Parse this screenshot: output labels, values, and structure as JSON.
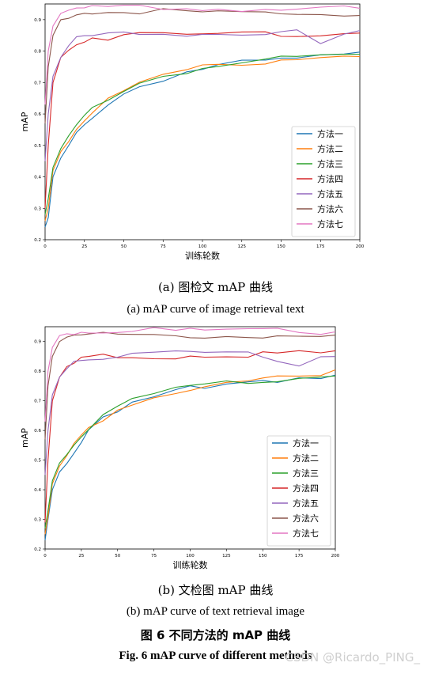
{
  "chart_data": [
    {
      "type": "line",
      "xlabel": "训练轮数",
      "ylabel": "mAP",
      "xlim": [
        0,
        200
      ],
      "ylim": [
        0.2,
        0.95
      ],
      "xticks": [
        0,
        25,
        50,
        75,
        100,
        125,
        150,
        175,
        200
      ],
      "yticks": [
        0.2,
        0.3,
        0.4,
        0.5,
        0.6,
        0.7,
        0.8,
        0.9
      ],
      "legend_position": "lower-right",
      "x": [
        0,
        2,
        5,
        10,
        15,
        20,
        25,
        30,
        40,
        50,
        60,
        75,
        90,
        100,
        110,
        125,
        140,
        150,
        160,
        175,
        190,
        200
      ],
      "series": [
        {
          "name": "方法一",
          "color": "#1f77b4",
          "values": [
            0.24,
            0.27,
            0.4,
            0.46,
            0.5,
            0.54,
            0.57,
            0.6,
            0.64,
            0.67,
            0.695,
            0.72,
            0.74,
            0.75,
            0.758,
            0.766,
            0.772,
            0.776,
            0.78,
            0.785,
            0.79,
            0.795
          ]
        },
        {
          "name": "方法二",
          "color": "#ff7f0e",
          "values": [
            0.26,
            0.3,
            0.42,
            0.48,
            0.52,
            0.56,
            0.59,
            0.615,
            0.65,
            0.68,
            0.7,
            0.725,
            0.742,
            0.752,
            0.76,
            0.768,
            0.774,
            0.778,
            0.782,
            0.787,
            0.792,
            0.8
          ]
        },
        {
          "name": "方法三",
          "color": "#2ca02c",
          "values": [
            0.28,
            0.33,
            0.43,
            0.49,
            0.53,
            0.565,
            0.595,
            0.62,
            0.655,
            0.685,
            0.705,
            0.728,
            0.744,
            0.754,
            0.761,
            0.769,
            0.775,
            0.779,
            0.783,
            0.788,
            0.79,
            0.795
          ]
        },
        {
          "name": "方法四",
          "color": "#d62728",
          "values": [
            0.3,
            0.5,
            0.7,
            0.78,
            0.81,
            0.83,
            0.845,
            0.85,
            0.852,
            0.855,
            0.856,
            0.857,
            0.858,
            0.86,
            0.86,
            0.861,
            0.862,
            0.863,
            0.864,
            0.865,
            0.866,
            0.866
          ]
        },
        {
          "name": "方法五",
          "color": "#9467bd",
          "values": [
            0.45,
            0.6,
            0.72,
            0.78,
            0.82,
            0.84,
            0.85,
            0.855,
            0.858,
            0.86,
            0.862,
            0.864,
            0.865,
            0.866,
            0.867,
            0.866,
            0.865,
            0.864,
            0.863,
            0.82,
            0.855,
            0.86
          ]
        },
        {
          "name": "方法六",
          "color": "#8c564b",
          "values": [
            0.57,
            0.75,
            0.85,
            0.9,
            0.92,
            0.925,
            0.927,
            0.928,
            0.929,
            0.93,
            0.93,
            0.93,
            0.928,
            0.927,
            0.926,
            0.925,
            0.925,
            0.924,
            0.924,
            0.923,
            0.922,
            0.922
          ]
        },
        {
          "name": "方法七",
          "color": "#e377c2",
          "values": [
            0.63,
            0.8,
            0.88,
            0.92,
            0.935,
            0.94,
            0.942,
            0.943,
            0.943,
            0.943,
            0.942,
            0.942,
            0.942,
            0.941,
            0.941,
            0.94,
            0.94,
            0.94,
            0.94,
            0.939,
            0.939,
            0.94
          ]
        }
      ]
    },
    {
      "type": "line",
      "xlabel": "训练轮数",
      "ylabel": "mAP",
      "xlim": [
        0,
        200
      ],
      "ylim": [
        0.2,
        0.95
      ],
      "xticks": [
        0,
        25,
        50,
        75,
        100,
        125,
        150,
        175,
        200
      ],
      "yticks": [
        0.2,
        0.3,
        0.4,
        0.5,
        0.6,
        0.7,
        0.8,
        0.9
      ],
      "legend_position": "lower-right",
      "x": [
        0,
        2,
        5,
        10,
        15,
        20,
        25,
        30,
        40,
        50,
        60,
        75,
        90,
        100,
        110,
        125,
        140,
        150,
        160,
        175,
        190,
        200
      ],
      "series": [
        {
          "name": "方法一",
          "color": "#1f77b4",
          "values": [
            0.23,
            0.3,
            0.4,
            0.46,
            0.5,
            0.54,
            0.57,
            0.6,
            0.64,
            0.665,
            0.69,
            0.715,
            0.735,
            0.745,
            0.755,
            0.764,
            0.771,
            0.775,
            0.779,
            0.784,
            0.789,
            0.795
          ]
        },
        {
          "name": "方法二",
          "color": "#ff7f0e",
          "values": [
            0.25,
            0.31,
            0.42,
            0.48,
            0.52,
            0.56,
            0.59,
            0.612,
            0.648,
            0.678,
            0.7,
            0.722,
            0.74,
            0.75,
            0.758,
            0.767,
            0.773,
            0.777,
            0.781,
            0.786,
            0.791,
            0.8
          ]
        },
        {
          "name": "方法三",
          "color": "#2ca02c",
          "values": [
            0.27,
            0.33,
            0.43,
            0.49,
            0.53,
            0.563,
            0.593,
            0.618,
            0.652,
            0.682,
            0.703,
            0.726,
            0.743,
            0.753,
            0.76,
            0.768,
            0.774,
            0.778,
            0.782,
            0.787,
            0.789,
            0.795
          ]
        },
        {
          "name": "方法四",
          "color": "#d62728",
          "values": [
            0.29,
            0.5,
            0.7,
            0.78,
            0.81,
            0.83,
            0.845,
            0.85,
            0.852,
            0.854,
            0.856,
            0.857,
            0.858,
            0.859,
            0.86,
            0.861,
            0.862,
            0.863,
            0.863,
            0.864,
            0.865,
            0.865
          ]
        },
        {
          "name": "方法五",
          "color": "#9467bd",
          "values": [
            0.45,
            0.6,
            0.72,
            0.78,
            0.82,
            0.84,
            0.85,
            0.855,
            0.858,
            0.86,
            0.862,
            0.864,
            0.865,
            0.866,
            0.867,
            0.866,
            0.865,
            0.864,
            0.84,
            0.83,
            0.855,
            0.86
          ]
        },
        {
          "name": "方法六",
          "color": "#8c564b",
          "values": [
            0.57,
            0.75,
            0.85,
            0.9,
            0.92,
            0.925,
            0.927,
            0.928,
            0.929,
            0.93,
            0.93,
            0.93,
            0.928,
            0.927,
            0.926,
            0.925,
            0.925,
            0.924,
            0.924,
            0.923,
            0.922,
            0.922
          ]
        },
        {
          "name": "方法七",
          "color": "#e377c2",
          "values": [
            0.63,
            0.8,
            0.88,
            0.92,
            0.935,
            0.94,
            0.942,
            0.943,
            0.943,
            0.943,
            0.942,
            0.942,
            0.942,
            0.941,
            0.941,
            0.94,
            0.94,
            0.94,
            0.94,
            0.939,
            0.939,
            0.94
          ]
        }
      ]
    }
  ],
  "captions": {
    "a_cn": "(a)  图检文 mAP 曲线",
    "a_en": "(a) mAP curve of image retrieval text",
    "b_cn": "(b)  文检图 mAP 曲线",
    "b_en": "(b) mAP curve of text retrieval image",
    "fig_cn": "图 6  不同方法的 mAP 曲线",
    "fig_en": "Fig. 6 mAP curve of different methods"
  },
  "watermark": "CSDN @Ricardo_PING_"
}
